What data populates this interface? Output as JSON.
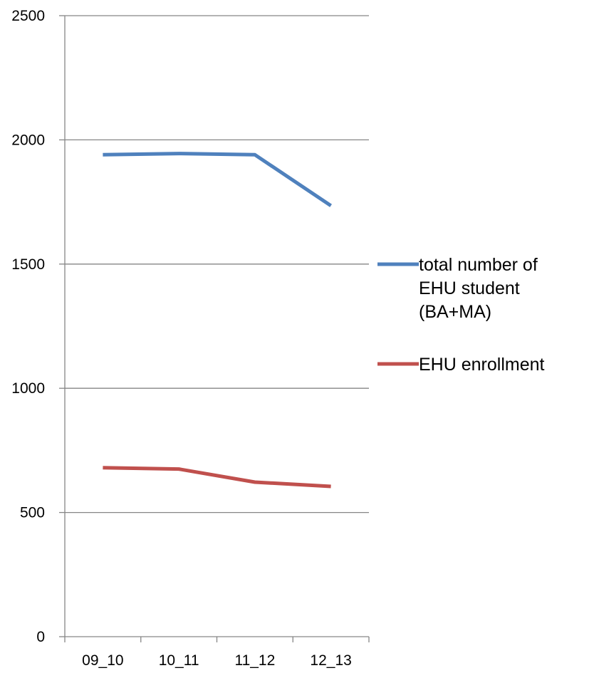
{
  "chart_data": {
    "type": "line",
    "title": "",
    "xlabel": "",
    "ylabel": "",
    "categories": [
      "09_10",
      "10_11",
      "11_12",
      "12_13"
    ],
    "ylim": [
      0,
      2500
    ],
    "yticks": [
      0,
      500,
      1000,
      1500,
      2000,
      2500
    ],
    "grid": true,
    "legend_position": "right",
    "series": [
      {
        "name": "total number of EHU student (BA+MA)",
        "legend_lines": [
          "total number of",
          "EHU student",
          "(BA+MA)"
        ],
        "color": "#4F81BD",
        "values": [
          1940,
          1945,
          1940,
          1735
        ]
      },
      {
        "name": "EHU enrollment",
        "legend_lines": [
          "EHU enrollment"
        ],
        "color": "#C0504D",
        "values": [
          680,
          675,
          622,
          605
        ]
      }
    ]
  }
}
